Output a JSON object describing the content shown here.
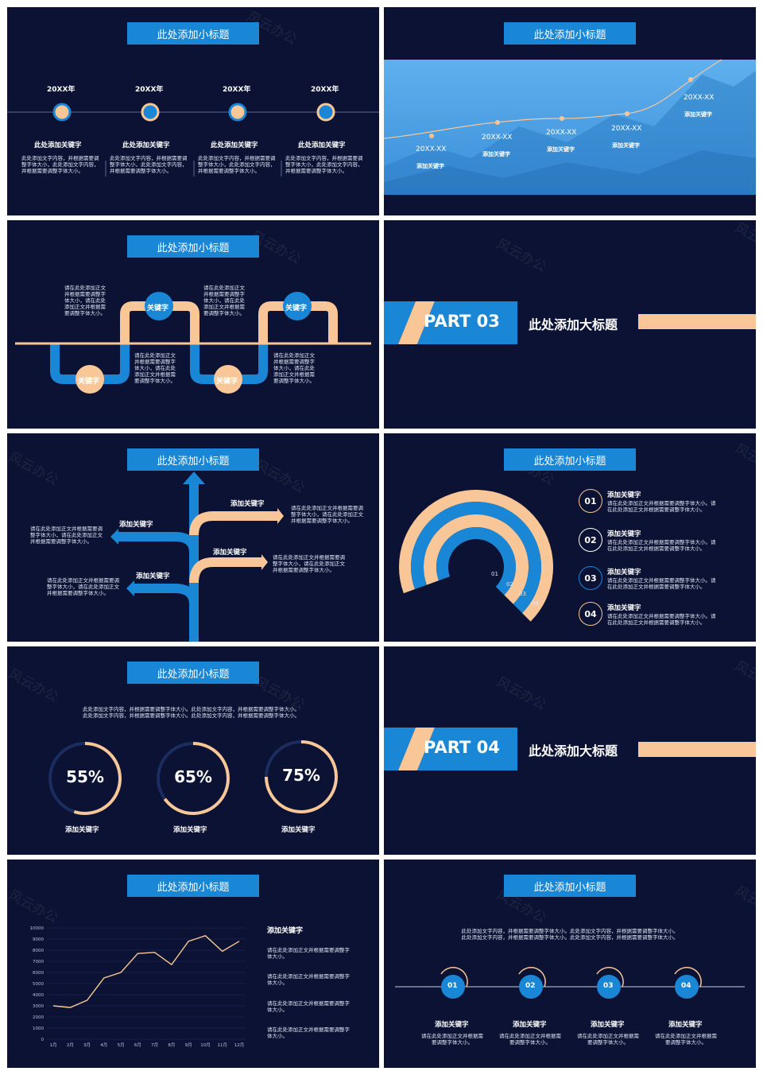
{
  "subtitle": "此处添加小标题",
  "watermark": "风云办公",
  "colors": {
    "bg": "#0b1233",
    "blue": "#1a86d6",
    "peach": "#f9c797"
  },
  "s1": {
    "years": [
      "20XX年",
      "20XX年",
      "20XX年",
      "20XX年"
    ],
    "items": [
      {
        "title": "此处添加关键字",
        "text": "此处添加文字内容，并根据需要调整字体大小，此处添加文字内容，并根据需要调整字体大小。"
      },
      {
        "title": "此处添加关键字",
        "text": "此处添加文字内容，并根据需要调整字体大小，此处添加文字内容，并根据需要调整字体大小。"
      },
      {
        "title": "此处添加关键字",
        "text": "此处添加文字内容，并根据需要调整字体大小，此处添加文字内容，并根据需要调整字体大小。"
      },
      {
        "title": "此处添加关键字",
        "text": "此处添加文字内容，并根据需要调整字体大小，此处添加文字内容，并根据需要调整字体大小。"
      }
    ]
  },
  "s2": {
    "points": [
      {
        "date": "20XX-XX",
        "label": "添加关键字"
      },
      {
        "date": "20XX-XX",
        "label": "添加关键字"
      },
      {
        "date": "20XX-XX",
        "label": "添加关键字"
      },
      {
        "date": "20XX-XX",
        "label": "添加关键字"
      },
      {
        "date": "20XX-XX",
        "label": "添加关键字"
      }
    ]
  },
  "s3": {
    "key": "关键字",
    "texts": [
      "请在此处添加正文并根据需要调整字体大小，请在此处添加正文并根据需要调整字体大小。",
      "请在此处添加正文并根据需要调整字体大小，请在此处添加正文并根据需要调整字体大小。",
      "请在此处添加正文并根据需要调整字体大小，请在此处添加正文并根据需要调整字体大小。",
      "请在此处添加正文并根据需要调整字体大小，请在此处添加正文并根据需要调整字体大小。"
    ]
  },
  "part3": {
    "part": "PART 03",
    "title": "此处添加大标题"
  },
  "s5": {
    "items": [
      {
        "title": "添加关键字",
        "text": "请在此处添加正文并根据需要调整字体大小，请在此处添加正文并根据需要调整字体大小。"
      },
      {
        "title": "添加关键字",
        "text": "请在此处添加正文并根据需要调整字体大小，请在此处添加正文并根据需要调整字体大小。"
      },
      {
        "title": "添加关键字",
        "text": "请在此处添加正文并根据需要调整字体大小，请在此处添加正文并根据需要调整字体大小。"
      },
      {
        "title": "添加关键字",
        "text": "请在此处添加正文并根据需要调整字体大小，请在此处添加正文并根据需要调整字体大小。"
      }
    ]
  },
  "s6": {
    "arc_labels": [
      "01",
      "02",
      "03",
      "04"
    ],
    "items": [
      {
        "num": "01",
        "title": "添加关键字",
        "text": "请在此处添加正文并根据需要调整字体大小。请在此处添加正文并根据需要调整字体大小。"
      },
      {
        "num": "02",
        "title": "添加关键字",
        "text": "请在此处添加正文并根据需要调整字体大小。请在此处添加正文并根据需要调整字体大小。"
      },
      {
        "num": "03",
        "title": "添加关键字",
        "text": "请在此处添加正文并根据需要调整字体大小。请在此处添加正文并根据需要调整字体大小。"
      },
      {
        "num": "04",
        "title": "添加关键字",
        "text": "请在此处添加正文并根据需要调整字体大小。请在此处添加正文并根据需要调整字体大小。"
      }
    ]
  },
  "s7": {
    "intro": "此处添加文字内容，并根据需要调整字体大小。此处添加文字内容，并根据需要调整字体大小。此处添加文字内容，并根据需要调整字体大小。此处添加文字内容，并根据需要调整字体大小。",
    "rings": [
      {
        "value": 55,
        "label": "55%",
        "caption": "添加关键字"
      },
      {
        "value": 65,
        "label": "65%",
        "caption": "添加关键字"
      },
      {
        "value": 75,
        "label": "75%",
        "caption": "添加关键字"
      }
    ]
  },
  "part4": {
    "part": "PART 04",
    "title": "此处添加大标题"
  },
  "chart_data": {
    "type": "line",
    "categories": [
      "1月",
      "2月",
      "3月",
      "4月",
      "5月",
      "6月",
      "7月",
      "8月",
      "9月",
      "10月",
      "11月",
      "12月"
    ],
    "values": [
      3000,
      2850,
      3500,
      5500,
      6000,
      7700,
      7800,
      6700,
      8800,
      9300,
      7900,
      8800
    ],
    "ylim": [
      0,
      10000
    ],
    "yticks": [
      0,
      1000,
      2000,
      3000,
      4000,
      5000,
      6000,
      7000,
      8000,
      9000,
      10000
    ],
    "grid": true
  },
  "s9": {
    "title": "添加关键字",
    "texts": [
      "请在此处添加正文并根据需要调整字体大小。",
      "请在此处添加正文并根据需要调整字体大小。",
      "请在此处添加正文并根据需要调整字体大小。",
      "请在此处添加正文并根据需要调整字体大小。"
    ]
  },
  "s10": {
    "intro": "此处添加文字内容，并根据需要调整字体大小。此处添加文字内容，并根据需要调整字体大小。此处添加文字内容，并根据需要调整字体大小。此处添加文字内容，并根据需要调整字体大小。",
    "items": [
      {
        "num": "01",
        "title": "添加关键字",
        "text": "请在此处添加正文并根据需要调整字体大小。"
      },
      {
        "num": "02",
        "title": "添加关键字",
        "text": "请在此处添加正文并根据需要调整字体大小。"
      },
      {
        "num": "03",
        "title": "添加关键字",
        "text": "请在此处添加正文并根据需要调整字体大小。"
      },
      {
        "num": "04",
        "title": "添加关键字",
        "text": "请在此处添加正文并根据需要调整字体大小。"
      }
    ]
  }
}
